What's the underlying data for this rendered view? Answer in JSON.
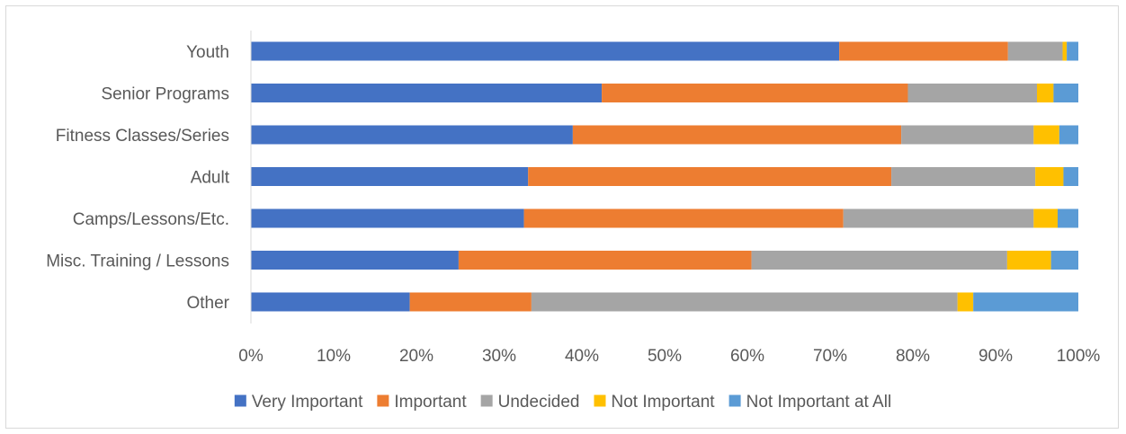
{
  "chart_data": {
    "type": "bar",
    "orientation": "horizontal",
    "stacked": "percent",
    "categories": [
      "Youth",
      "Senior Programs",
      "Fitness Classes/Series",
      "Adult",
      "Camps/Lessons/Etc.",
      "Misc. Training / Lessons",
      "Other"
    ],
    "series": [
      {
        "name": "Very Important",
        "color": "#4472C4",
        "values": [
          71.1,
          42.4,
          38.9,
          33.5,
          33.0,
          25.1,
          19.2
        ]
      },
      {
        "name": "Important",
        "color": "#ED7D31",
        "values": [
          20.4,
          37.0,
          39.7,
          43.9,
          38.6,
          35.4,
          14.7
        ]
      },
      {
        "name": "Undecided",
        "color": "#A5A5A5",
        "values": [
          6.6,
          15.6,
          16.0,
          17.4,
          23.0,
          30.9,
          51.5
        ]
      },
      {
        "name": "Not Important",
        "color": "#FFC000",
        "values": [
          0.5,
          2.0,
          3.1,
          3.4,
          2.9,
          5.3,
          1.9
        ]
      },
      {
        "name": "Not Important at All",
        "color": "#5B9BD5",
        "values": [
          1.4,
          3.0,
          2.3,
          1.8,
          2.5,
          3.3,
          12.7
        ]
      }
    ],
    "x_ticks": [
      "0%",
      "10%",
      "20%",
      "30%",
      "40%",
      "50%",
      "60%",
      "70%",
      "80%",
      "90%",
      "100%"
    ],
    "xlim": [
      0,
      100
    ],
    "grid": false,
    "legend_position": "bottom",
    "title": "",
    "xlabel": "",
    "ylabel": ""
  }
}
